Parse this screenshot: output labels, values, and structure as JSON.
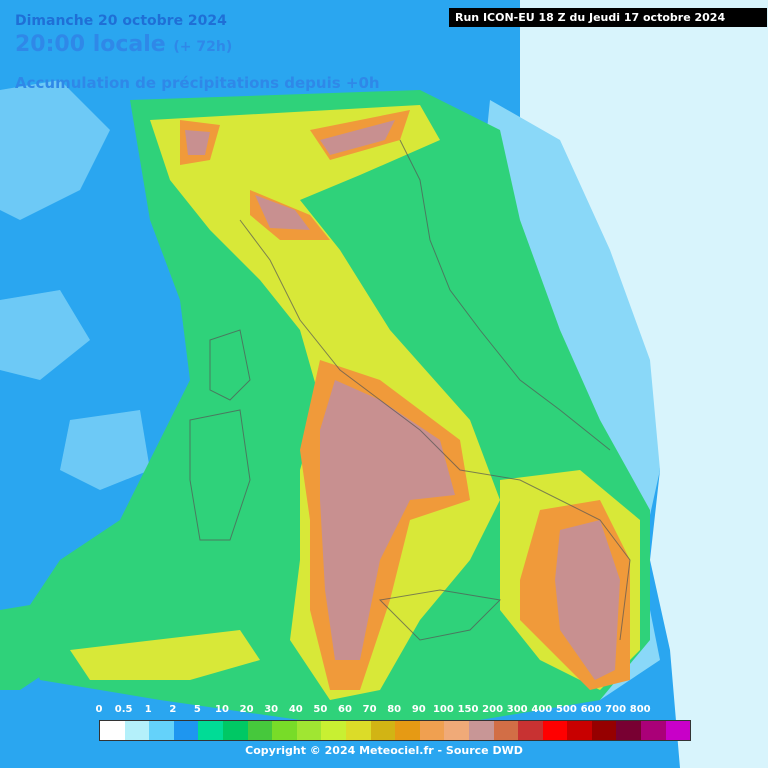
{
  "header": {
    "date_line": "Dimanche 20 octobre 2024",
    "time_local": "20:00 locale",
    "lead": "(+ 72h)",
    "parameter": "Accumulation de précipitations depuis +0h",
    "run_info": "Run ICON-EU 18 Z du Jeudi 17 octobre 2024"
  },
  "legend": {
    "labels": [
      "0",
      "0.5",
      "1",
      "2",
      "5",
      "10",
      "20",
      "30",
      "40",
      "50",
      "60",
      "70",
      "80",
      "90",
      "100",
      "150",
      "200",
      "300",
      "400",
      "500",
      "600",
      "700",
      "800"
    ],
    "colors": [
      "#ffffff",
      "#b4f0fa",
      "#64d2fa",
      "#1e96f0",
      "#00dc96",
      "#00c864",
      "#46c83c",
      "#78dc28",
      "#a0e632",
      "#c8f032",
      "#dcdc28",
      "#d2b414",
      "#e69a14",
      "#f0a050",
      "#f0aa78",
      "#c89696",
      "#d26e46",
      "#c83232",
      "#ff0000",
      "#c80000",
      "#960000",
      "#780032",
      "#aa0078",
      "#c800c8"
    ]
  },
  "footer": {
    "copyright": "Copyright © 2024 Meteociel.fr - Source DWD"
  },
  "colors": {
    "sea_low": "#2aa6f0",
    "light_blue": "#8ad8f8",
    "green": "#2fd27a",
    "yellow": "#d8e838",
    "orange": "#f09a3a",
    "brown_pink": "#c89090"
  }
}
